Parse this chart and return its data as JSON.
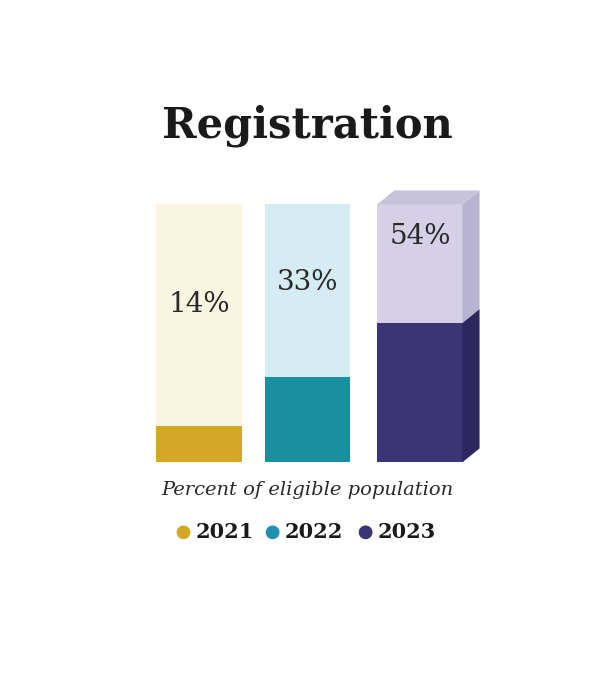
{
  "title": "Registration",
  "subtitle": "Percent of eligible population",
  "bars": [
    {
      "year": "2021",
      "pct": 14,
      "label": "14%",
      "total": 100,
      "bg_color": "#faf5e0",
      "fill_color": "#d4a827",
      "bg_side_color": "#ede8d0",
      "fill_side_color": "#c09820",
      "dot_color": "#d4a827",
      "has_3d": false
    },
    {
      "year": "2022",
      "pct": 33,
      "label": "33%",
      "total": 100,
      "bg_color": "#d6ecf5",
      "fill_color": "#1a8fa0",
      "bg_side_color": "#bdd9e8",
      "fill_side_color": "#147080",
      "dot_color": "#2090b0",
      "has_3d": false
    },
    {
      "year": "2023",
      "pct": 54,
      "label": "54%",
      "total": 100,
      "bg_color": "#d5d0e8",
      "fill_color": "#3b3475",
      "bg_side_color": "#b8b3d0",
      "fill_side_color": "#2d2660",
      "top_color": "#c8c3dc",
      "dot_color": "#3b3475",
      "has_3d": true
    }
  ],
  "background_color": "#ffffff",
  "title_fontsize": 30,
  "subtitle_fontsize": 14,
  "legend_fontsize": 15,
  "label_fontsize": 20,
  "text_color": "#2a2a2a"
}
